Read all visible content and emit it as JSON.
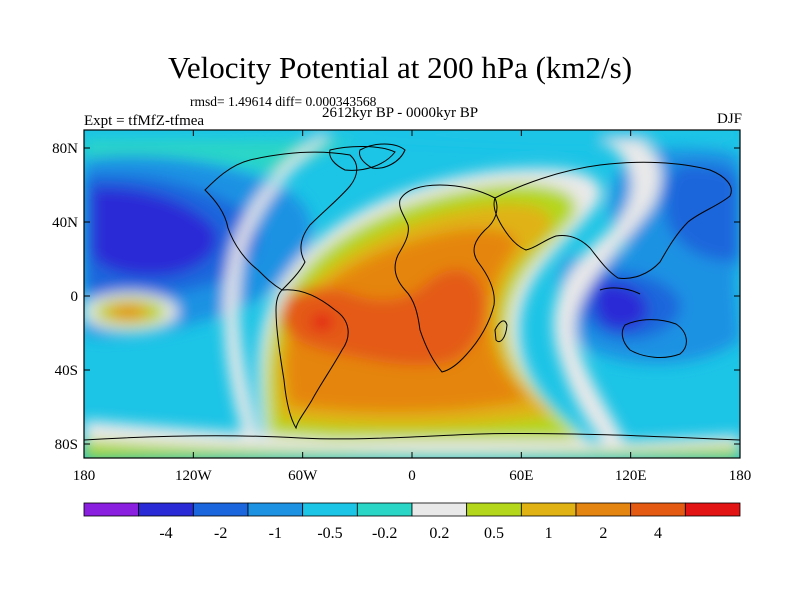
{
  "title": "Velocity Potential at 200 hPa (km2/s)",
  "stats": "rmsd= 1.49614 diff= 0.000343568",
  "period": "2612kyr BP - 0000kyr BP",
  "experiment": "Expt = tfMfZ-tfmea",
  "season": "DJF",
  "map": {
    "lat_labels": [
      "80N",
      "40N",
      "0",
      "40S",
      "80S"
    ],
    "lon_labels": [
      "180",
      "120W",
      "60W",
      "0",
      "60E",
      "120E",
      "180"
    ]
  },
  "colorbar": {
    "colors": [
      "#8a1fe0",
      "#2a2bd6",
      "#1b66dc",
      "#1d92e3",
      "#1cc4e6",
      "#2ad6c6",
      "#e9e9e9",
      "#b4d71b",
      "#e0b214",
      "#e58511",
      "#e45a12",
      "#e31414"
    ],
    "labels": [
      "-4",
      "-2",
      "-1",
      "-0.5",
      "-0.2",
      "0.2",
      "0.5",
      "1",
      "2",
      "4"
    ]
  }
}
